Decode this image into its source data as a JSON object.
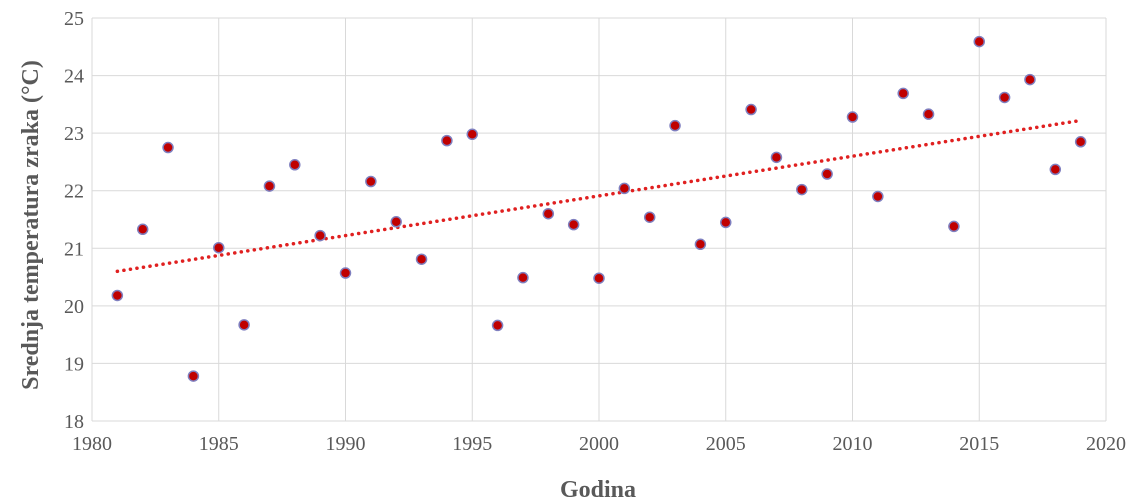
{
  "chart_data": {
    "type": "scatter",
    "xlabel": "Godina",
    "ylabel": "Srednja temperatura zraka (°C)",
    "xlim": [
      1980,
      2020
    ],
    "ylim": [
      18,
      25
    ],
    "xticks": [
      1980,
      1985,
      1990,
      1995,
      2000,
      2005,
      2010,
      2015,
      2020
    ],
    "yticks": [
      18,
      19,
      20,
      21,
      22,
      23,
      24,
      25
    ],
    "grid": true,
    "series": [
      {
        "marker_color": "#c00000",
        "marker_edge_color": "#7f7fbf",
        "x": [
          1981,
          1982,
          1983,
          1984,
          1985,
          1986,
          1987,
          1988,
          1989,
          1990,
          1991,
          1992,
          1993,
          1994,
          1995,
          1996,
          1997,
          1998,
          1999,
          2000,
          2001,
          2002,
          2003,
          2004,
          2005,
          2006,
          2007,
          2008,
          2009,
          2010,
          2011,
          2012,
          2013,
          2014,
          2015,
          2016,
          2017,
          2018,
          2019
        ],
        "y": [
          20.18,
          21.33,
          22.75,
          18.78,
          21.01,
          19.67,
          22.08,
          22.45,
          21.22,
          20.57,
          22.16,
          21.46,
          20.81,
          22.87,
          22.98,
          19.66,
          20.49,
          21.6,
          21.41,
          20.48,
          22.04,
          21.54,
          23.13,
          21.07,
          21.45,
          23.41,
          22.58,
          22.02,
          22.29,
          23.28,
          21.9,
          23.69,
          23.33,
          21.38,
          24.59,
          23.62,
          23.93,
          22.37,
          22.85
        ]
      }
    ],
    "trendline": {
      "type": "linear",
      "style": "dotted",
      "color": "#e02020",
      "x": [
        1981,
        2019
      ],
      "y": [
        20.6,
        23.22
      ]
    }
  }
}
